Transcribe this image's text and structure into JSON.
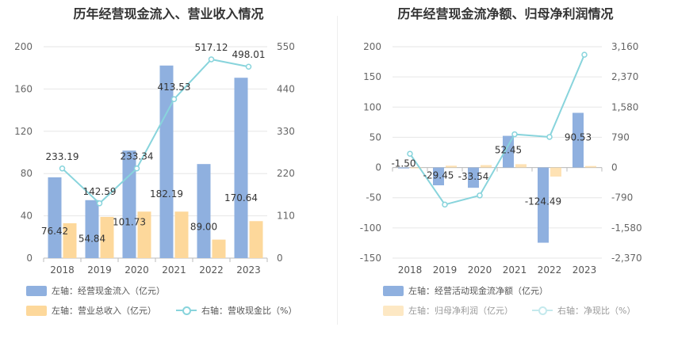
{
  "chart_data": [
    {
      "type": "bar+line",
      "title": "历年经营现金流入、营业收入情况",
      "categories": [
        "2018",
        "2019",
        "2020",
        "2021",
        "2022",
        "2023"
      ],
      "left_axis": {
        "ticks": [
          "0",
          "40",
          "80",
          "120",
          "160",
          "200"
        ],
        "ylim": [
          0,
          200
        ]
      },
      "right_axis": {
        "ticks": [
          "0",
          "110",
          "220",
          "330",
          "440",
          "550"
        ],
        "ylim": [
          0,
          550
        ]
      },
      "series": [
        {
          "name": "左轴：经营现金流入（亿元）",
          "kind": "bar",
          "axis": "left",
          "color": "#8fb0df",
          "values": [
            76.42,
            54.84,
            101.73,
            182.19,
            89.0,
            170.64
          ],
          "labels": [
            "76.42",
            "54.84",
            "101.73",
            "182.19",
            "89.00",
            "170.64"
          ]
        },
        {
          "name": "左轴：营业总收入（亿元）",
          "kind": "bar",
          "axis": "left",
          "color": "#fdd89b",
          "values": [
            33,
            39,
            44,
            44,
            17.5,
            35
          ]
        },
        {
          "name": "右轴：营收现金比（%）",
          "kind": "line",
          "axis": "right",
          "color": "#88d4dc",
          "values": [
            233.19,
            142.59,
            233.34,
            413.53,
            517.12,
            498.01
          ],
          "labels": [
            "233.19",
            "142.59",
            "233.34",
            "413.53",
            "517.12",
            "498.01"
          ]
        }
      ]
    },
    {
      "type": "bar+line",
      "title": "历年经营现金流净额、归母净利润情况",
      "categories": [
        "2018",
        "2019",
        "2020",
        "2021",
        "2022",
        "2023"
      ],
      "left_axis": {
        "ticks": [
          "-150",
          "-100",
          "-50",
          "0",
          "50",
          "100",
          "150",
          "200"
        ],
        "ylim": [
          -150,
          200
        ]
      },
      "right_axis": {
        "ticks": [
          "-2,370",
          "-1,580",
          "-790",
          "0",
          "790",
          "1,580",
          "2,370",
          "3,160"
        ],
        "ylim": [
          -2370,
          3160
        ]
      },
      "series": [
        {
          "name": "左轴：经营活动现金流净额（亿元）",
          "kind": "bar",
          "axis": "left",
          "color": "#8fb0df",
          "values": [
            -1.5,
            -29.45,
            -33.54,
            52.45,
            -124.49,
            90.53
          ],
          "labels": [
            "-1.50",
            "-29.45",
            "-33.54",
            "52.45",
            "-124.49",
            "90.53"
          ]
        },
        {
          "name": "左轴：归母净利润（亿元）",
          "kind": "bar",
          "axis": "left",
          "color": "#fdd89b",
          "values": [
            -1,
            3,
            4,
            5.5,
            -15,
            2.5
          ]
        },
        {
          "name": "右轴：净现比（%）",
          "kind": "line",
          "axis": "right",
          "color": "#88d4dc",
          "values": [
            360,
            -970,
            -730,
            870,
            800,
            2950
          ]
        }
      ]
    }
  ]
}
